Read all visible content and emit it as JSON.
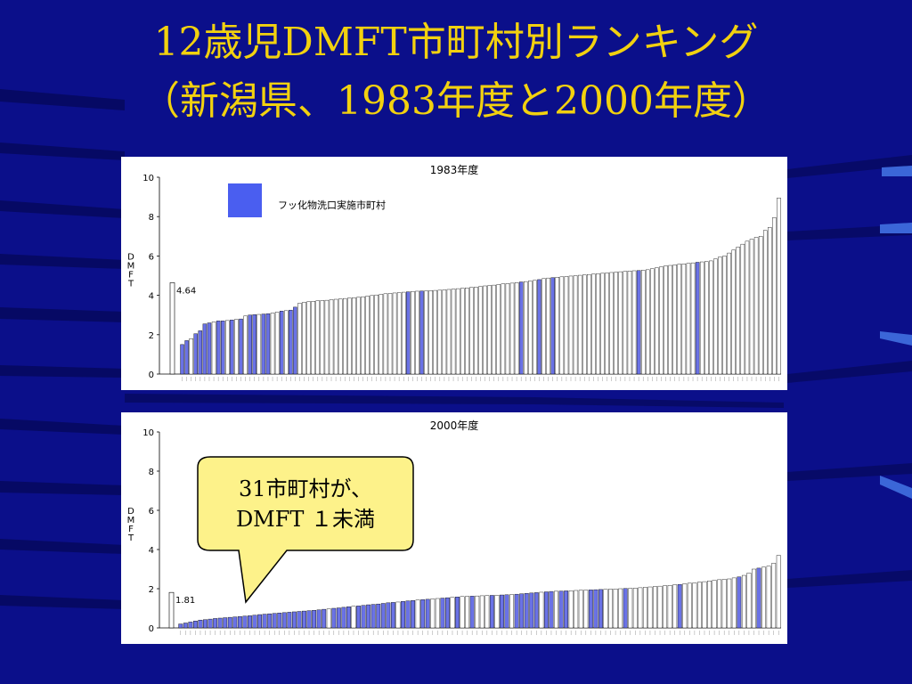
{
  "slide": {
    "title_line1": "12歳児DMFT市町村別ランキング",
    "title_line2": "（新潟県、1983年度と2000年度）"
  },
  "callout": {
    "line1": "31市町村が、",
    "line2": "DMFT １未満"
  },
  "colors": {
    "background": "#0b0f8a",
    "title": "#f2d10f",
    "fluoride_bar": "#6a72e6",
    "plain_bar": "#ffffff",
    "legend_swatch": "#4a5ef0",
    "callout_fill": "#fdf28a"
  },
  "chart_data": [
    {
      "type": "bar",
      "title": "1983年度",
      "ylabel": "DMFT",
      "ylim": [
        0,
        10
      ],
      "yticks": [
        0,
        2,
        4,
        6,
        8,
        10
      ],
      "legend": {
        "label": "フッ化物洗口実施市町村",
        "placement": "top-left"
      },
      "reference": {
        "value": 4.64,
        "label": "4.64"
      },
      "values": [
        1.5,
        1.7,
        1.8,
        2.05,
        2.2,
        2.55,
        2.6,
        2.65,
        2.7,
        2.7,
        2.72,
        2.75,
        2.78,
        2.8,
        2.95,
        3.0,
        3.02,
        3.03,
        3.05,
        3.07,
        3.1,
        3.15,
        3.2,
        3.22,
        3.25,
        3.4,
        3.6,
        3.65,
        3.68,
        3.7,
        3.72,
        3.74,
        3.75,
        3.78,
        3.8,
        3.82,
        3.84,
        3.86,
        3.88,
        3.9,
        3.93,
        3.96,
        3.99,
        4.02,
        4.05,
        4.08,
        4.1,
        4.12,
        4.14,
        4.16,
        4.18,
        4.2,
        4.21,
        4.22,
        4.23,
        4.24,
        4.25,
        4.26,
        4.28,
        4.3,
        4.32,
        4.34,
        4.36,
        4.38,
        4.4,
        4.42,
        4.45,
        4.48,
        4.5,
        4.52,
        4.55,
        4.58,
        4.6,
        4.62,
        4.65,
        4.68,
        4.7,
        4.73,
        4.76,
        4.8,
        4.85,
        4.88,
        4.9,
        4.92,
        4.94,
        4.96,
        4.98,
        5.0,
        5.02,
        5.04,
        5.06,
        5.08,
        5.1,
        5.12,
        5.14,
        5.16,
        5.18,
        5.2,
        5.22,
        5.24,
        5.25,
        5.26,
        5.28,
        5.3,
        5.35,
        5.4,
        5.45,
        5.5,
        5.52,
        5.55,
        5.58,
        5.6,
        5.62,
        5.65,
        5.68,
        5.7,
        5.72,
        5.75,
        5.85,
        5.95,
        6.0,
        6.15,
        6.3,
        6.45,
        6.6,
        6.75,
        6.85,
        6.95,
        7.0,
        7.3,
        7.45,
        7.95,
        8.95
      ],
      "fluoride_flags": [
        1,
        1,
        0,
        1,
        1,
        1,
        1,
        0,
        1,
        1,
        0,
        1,
        0,
        1,
        0,
        1,
        1,
        0,
        1,
        1,
        0,
        0,
        1,
        0,
        1,
        1,
        0,
        0,
        0,
        0,
        0,
        0,
        0,
        0,
        0,
        0,
        0,
        0,
        0,
        0,
        0,
        0,
        0,
        0,
        0,
        0,
        0,
        0,
        0,
        0,
        1,
        0,
        0,
        1,
        0,
        0,
        0,
        0,
        0,
        0,
        0,
        0,
        0,
        0,
        0,
        0,
        0,
        0,
        0,
        0,
        0,
        0,
        0,
        0,
        0,
        1,
        0,
        0,
        0,
        1,
        0,
        0,
        1,
        0,
        0,
        0,
        0,
        0,
        0,
        0,
        0,
        0,
        0,
        0,
        0,
        0,
        0,
        0,
        0,
        0,
        0,
        1,
        0,
        0,
        0,
        0,
        0,
        0,
        0,
        0,
        0,
        0,
        0,
        0,
        1,
        0,
        0,
        0,
        0,
        0,
        0,
        0,
        0,
        0,
        0,
        0,
        0,
        0,
        0,
        0,
        0,
        0,
        0,
        0,
        0,
        0
      ]
    },
    {
      "type": "bar",
      "title": "2000年度",
      "ylabel": "DMFT",
      "ylim": [
        0,
        10
      ],
      "yticks": [
        0,
        2,
        4,
        6,
        8,
        10
      ],
      "reference": {
        "value": 1.81,
        "label": "1.81"
      },
      "values": [
        0.2,
        0.25,
        0.3,
        0.35,
        0.4,
        0.42,
        0.45,
        0.48,
        0.5,
        0.52,
        0.54,
        0.56,
        0.58,
        0.6,
        0.62,
        0.65,
        0.68,
        0.7,
        0.72,
        0.74,
        0.76,
        0.78,
        0.8,
        0.82,
        0.84,
        0.86,
        0.88,
        0.9,
        0.92,
        0.95,
        0.97,
        1.0,
        1.02,
        1.05,
        1.08,
        1.1,
        1.12,
        1.15,
        1.18,
        1.2,
        1.22,
        1.25,
        1.28,
        1.3,
        1.32,
        1.35,
        1.38,
        1.4,
        1.42,
        1.44,
        1.46,
        1.48,
        1.5,
        1.52,
        1.54,
        1.56,
        1.58,
        1.6,
        1.61,
        1.62,
        1.63,
        1.64,
        1.65,
        1.66,
        1.67,
        1.68,
        1.69,
        1.7,
        1.72,
        1.74,
        1.76,
        1.78,
        1.8,
        1.82,
        1.84,
        1.86,
        1.87,
        1.88,
        1.89,
        1.9,
        1.91,
        1.92,
        1.93,
        1.94,
        1.95,
        1.96,
        1.97,
        1.98,
        1.99,
        2.0,
        2.01,
        2.02,
        2.03,
        2.05,
        2.07,
        2.09,
        2.11,
        2.13,
        2.15,
        2.17,
        2.2,
        2.22,
        2.25,
        2.28,
        2.3,
        2.33,
        2.36,
        2.4,
        2.43,
        2.46,
        2.48,
        2.5,
        2.55,
        2.6,
        2.68,
        2.8,
        3.0,
        3.05,
        3.1,
        3.15,
        3.3,
        3.7
      ],
      "fluoride_flags": [
        1,
        1,
        1,
        1,
        1,
        1,
        1,
        1,
        1,
        1,
        1,
        1,
        1,
        1,
        1,
        1,
        1,
        1,
        1,
        1,
        1,
        1,
        1,
        1,
        1,
        1,
        1,
        1,
        1,
        1,
        0,
        1,
        1,
        1,
        1,
        0,
        1,
        1,
        1,
        1,
        1,
        1,
        1,
        1,
        0,
        1,
        1,
        1,
        0,
        1,
        1,
        0,
        0,
        1,
        1,
        0,
        1,
        0,
        0,
        1,
        0,
        0,
        0,
        1,
        0,
        1,
        1,
        0,
        1,
        1,
        1,
        1,
        1,
        0,
        1,
        1,
        0,
        1,
        1,
        0,
        0,
        0,
        0,
        1,
        1,
        1,
        0,
        0,
        0,
        0,
        1,
        0,
        0,
        0,
        0,
        0,
        0,
        0,
        0,
        0,
        0,
        1,
        0,
        0,
        0,
        0,
        0,
        0,
        0,
        0,
        0,
        0,
        0,
        1,
        0,
        0,
        0,
        1,
        0,
        0,
        0,
        0
      ]
    }
  ]
}
